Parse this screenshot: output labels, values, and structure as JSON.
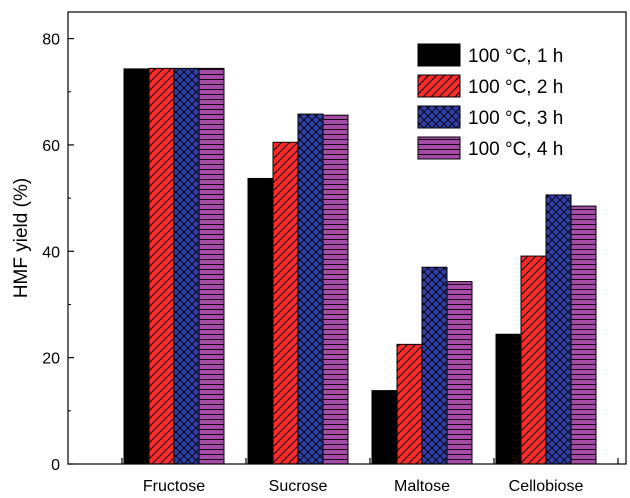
{
  "chart_data": {
    "type": "bar",
    "title": "",
    "xlabel": "",
    "ylabel": "HMF yield (%)",
    "ylim": [
      0,
      85
    ],
    "yticks": [
      0,
      20,
      40,
      60,
      80
    ],
    "categories": [
      "Fructose",
      "Sucrose",
      "Maltose",
      "Cellobiose"
    ],
    "legend_position": "top-right",
    "grid": false,
    "series": [
      {
        "name": "100 °C, 1 h",
        "values": [
          74.3,
          53.7,
          13.8,
          24.4
        ],
        "color": "#000000",
        "pattern": "solid"
      },
      {
        "name": "100 °C, 2 h",
        "values": [
          74.4,
          60.5,
          22.5,
          39.1
        ],
        "color": "#ff2a2a",
        "pattern": "diagonal"
      },
      {
        "name": "100 °C, 3 h",
        "values": [
          74.4,
          65.8,
          37.0,
          50.6
        ],
        "color": "#2f3fa8",
        "pattern": "crosshatch"
      },
      {
        "name": "100 °C, 4 h",
        "values": [
          74.4,
          65.6,
          34.3,
          48.5
        ],
        "color": "#a64aa8",
        "pattern": "horizontal"
      }
    ]
  }
}
